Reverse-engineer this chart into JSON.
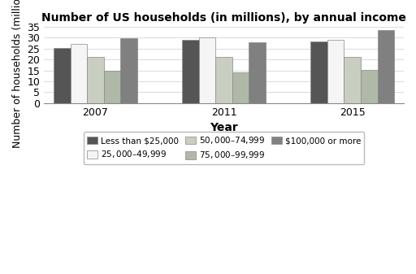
{
  "title": "Number of US households (in millions), by annual income",
  "xlabel": "Year",
  "ylabel": "Number of households (millions)",
  "years": [
    "2007",
    "2011",
    "2015"
  ],
  "categories": [
    "Less than $25,000",
    "$25,000–$49,999",
    "$50,000–$74,999",
    "$75,000–$99,999",
    "$100,000 or more"
  ],
  "values": {
    "Less than $25,000": [
      25.3,
      29.0,
      28.1
    ],
    "$25,000–$49,999": [
      27.0,
      30.0,
      29.0
    ],
    "$50,000–$74,999": [
      21.0,
      21.2,
      21.0
    ],
    "$75,000–$99,999": [
      14.8,
      14.2,
      15.3
    ],
    "$100,000 or more": [
      29.6,
      28.0,
      33.5
    ]
  },
  "colors": [
    "#555555",
    "#f5f5f5",
    "#c8cfc0",
    "#b0b8a8",
    "#808080"
  ],
  "ylim": [
    0,
    35
  ],
  "yticks": [
    0,
    5,
    10,
    15,
    20,
    25,
    30,
    35
  ],
  "bar_width": 0.13,
  "edgecolor": "#888888",
  "background_color": "#ffffff",
  "legend_ncol": 3
}
